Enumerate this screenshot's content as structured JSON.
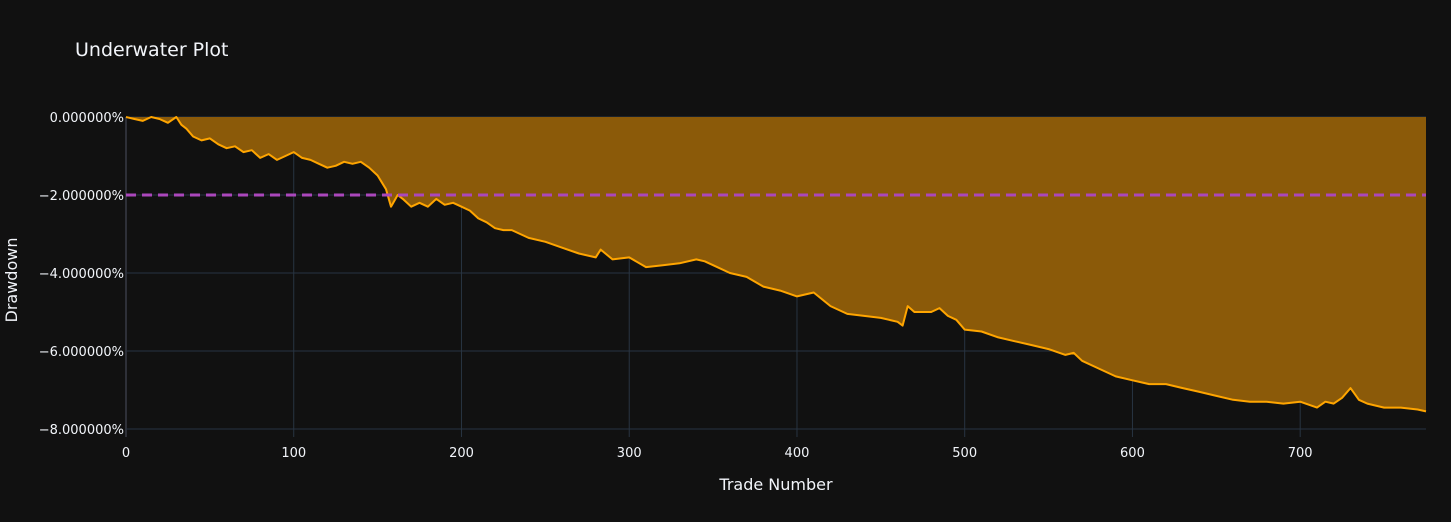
{
  "chart_data": {
    "type": "area",
    "title": "Underwater Plot",
    "xlabel": "Trade Number",
    "ylabel": "Drawdown",
    "xlim": [
      0,
      775
    ],
    "ylim": [
      -8.2,
      0
    ],
    "xticks": [
      0,
      100,
      200,
      300,
      400,
      500,
      600,
      700
    ],
    "xtick_labels": [
      "0",
      "100",
      "200",
      "300",
      "400",
      "500",
      "600",
      "700"
    ],
    "yticks": [
      0,
      -2,
      -4,
      -6,
      -8
    ],
    "ytick_labels": [
      "0.000000%",
      "−2.000000%",
      "−4.000000%",
      "−6.000000%",
      "−8.000000%"
    ],
    "grid": true,
    "series": [
      {
        "color": "#ffa500",
        "fill": "#8b5a09",
        "x": [
          0,
          5,
          10,
          15,
          20,
          25,
          30,
          33,
          36,
          40,
          45,
          50,
          55,
          60,
          65,
          70,
          75,
          80,
          85,
          90,
          95,
          100,
          105,
          110,
          115,
          120,
          125,
          130,
          135,
          140,
          145,
          150,
          155,
          158,
          162,
          165,
          170,
          175,
          180,
          185,
          190,
          195,
          200,
          205,
          210,
          215,
          220,
          225,
          230,
          240,
          250,
          260,
          270,
          280,
          283,
          290,
          300,
          310,
          320,
          330,
          340,
          345,
          350,
          360,
          370,
          380,
          390,
          400,
          410,
          420,
          430,
          440,
          450,
          460,
          463,
          466,
          470,
          480,
          485,
          490,
          495,
          500,
          510,
          520,
          530,
          540,
          550,
          560,
          565,
          570,
          580,
          590,
          600,
          610,
          620,
          630,
          640,
          650,
          660,
          670,
          680,
          690,
          700,
          710,
          715,
          720,
          725,
          730,
          735,
          740,
          750,
          760,
          770,
          775
        ],
        "y": [
          0,
          -0.05,
          -0.1,
          0.0,
          -0.05,
          -0.15,
          0.0,
          -0.2,
          -0.3,
          -0.5,
          -0.6,
          -0.55,
          -0.7,
          -0.8,
          -0.75,
          -0.9,
          -0.85,
          -1.05,
          -0.95,
          -1.1,
          -1.0,
          -0.9,
          -1.05,
          -1.1,
          -1.2,
          -1.3,
          -1.25,
          -1.15,
          -1.2,
          -1.15,
          -1.3,
          -1.5,
          -1.85,
          -2.3,
          -2.0,
          -2.1,
          -2.3,
          -2.2,
          -2.3,
          -2.1,
          -2.25,
          -2.2,
          -2.3,
          -2.4,
          -2.6,
          -2.7,
          -2.85,
          -2.9,
          -2.9,
          -3.1,
          -3.2,
          -3.35,
          -3.5,
          -3.6,
          -3.4,
          -3.65,
          -3.6,
          -3.85,
          -3.8,
          -3.75,
          -3.65,
          -3.7,
          -3.8,
          -4.0,
          -4.1,
          -4.35,
          -4.45,
          -4.6,
          -4.5,
          -4.85,
          -5.05,
          -5.1,
          -5.15,
          -5.25,
          -5.35,
          -4.85,
          -5.0,
          -5.0,
          -4.9,
          -5.1,
          -5.2,
          -5.45,
          -5.5,
          -5.65,
          -5.75,
          -5.85,
          -5.95,
          -6.1,
          -6.05,
          -6.25,
          -6.45,
          -6.65,
          -6.75,
          -6.85,
          -6.85,
          -6.95,
          -7.05,
          -7.15,
          -7.25,
          -7.3,
          -7.3,
          -7.35,
          -7.3,
          -7.45,
          -7.3,
          -7.35,
          -7.2,
          -6.95,
          -7.25,
          -7.35,
          -7.45,
          -7.45,
          -7.5,
          -7.55
        ]
      }
    ],
    "reference_line": {
      "y": -2,
      "color": "#ab47bc",
      "dash": true
    }
  }
}
